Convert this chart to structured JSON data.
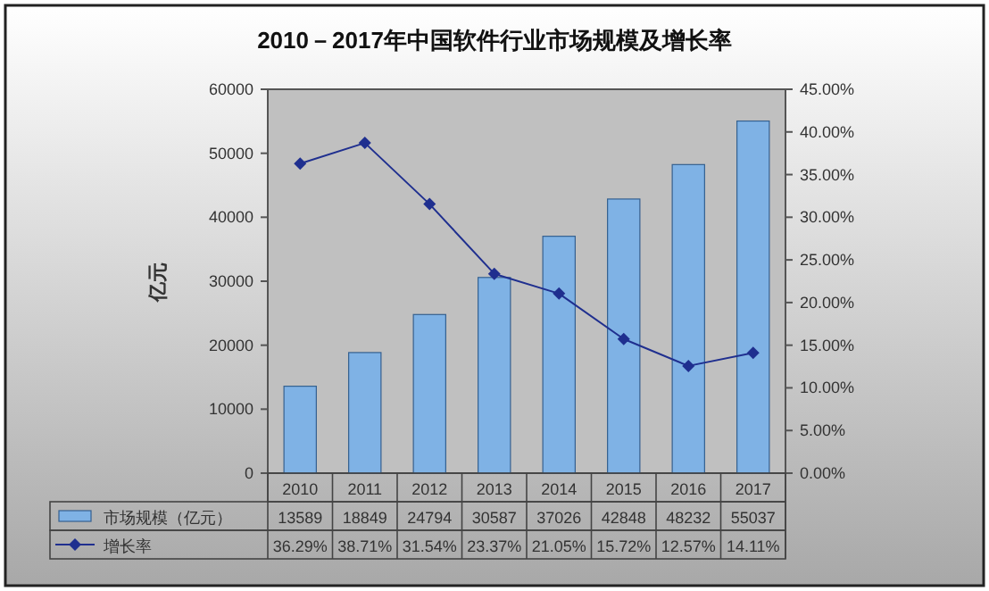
{
  "chart_data": {
    "type": "bar",
    "title": "2010－2017年中国软件行业市场规模及增长率",
    "ylabel": "亿元",
    "categories": [
      "2010",
      "2011",
      "2012",
      "2013",
      "2014",
      "2015",
      "2016",
      "2017"
    ],
    "series": [
      {
        "name": "市场规模（亿元）",
        "color": "#7fb2e5",
        "values": [
          13589,
          18849,
          24794,
          30587,
          37026,
          42848,
          48232,
          55037
        ],
        "value_labels": [
          "13589",
          "18849",
          "24794",
          "30587",
          "37026",
          "42848",
          "48232",
          "55037"
        ]
      },
      {
        "name": "增长率",
        "type": "line",
        "axis": "y2",
        "color": "#1f2f8f",
        "marker": "diamond",
        "values": [
          36.29,
          38.71,
          31.54,
          23.37,
          21.05,
          15.72,
          12.57,
          14.11
        ],
        "value_labels": [
          "36.29%",
          "38.71%",
          "31.54%",
          "23.37%",
          "21.05%",
          "15.72%",
          "12.57%",
          "14.11%"
        ]
      }
    ],
    "ylim": [
      0,
      60000
    ],
    "yticks": [
      0,
      10000,
      20000,
      30000,
      40000,
      50000,
      60000
    ],
    "y2lim": [
      0,
      45
    ],
    "y2ticks": [
      {
        "value": 0,
        "label": "0.00%"
      },
      {
        "value": 5,
        "label": "5.00%"
      },
      {
        "value": 10,
        "label": "10.00%"
      },
      {
        "value": 15,
        "label": "15.00%"
      },
      {
        "value": 20,
        "label": "20.00%"
      },
      {
        "value": 25,
        "label": "25.00%"
      },
      {
        "value": 30,
        "label": "30.00%"
      },
      {
        "value": 35,
        "label": "35.00%"
      },
      {
        "value": 40,
        "label": "40.00%"
      },
      {
        "value": 45,
        "label": "45.00%"
      }
    ],
    "legend": "bottom"
  }
}
